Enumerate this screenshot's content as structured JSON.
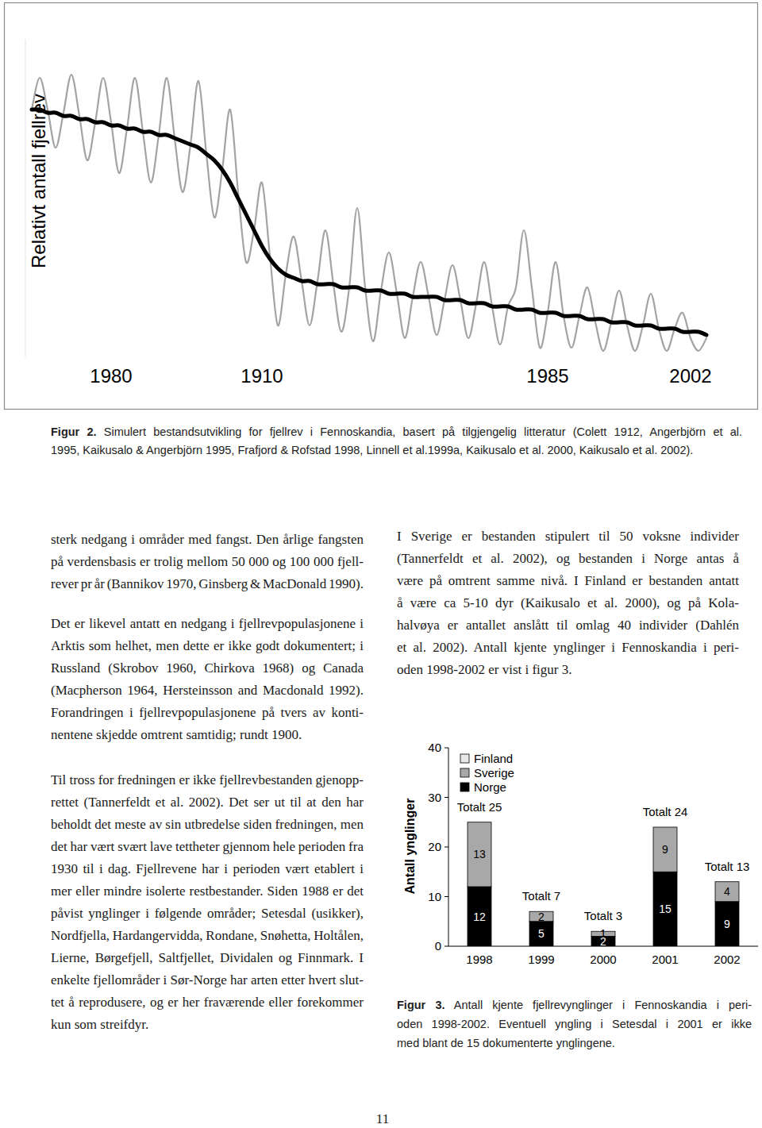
{
  "chart_data": [
    {
      "type": "line",
      "ylabel": "Relativt antall fjellrev",
      "categories": [
        null,
        null,
        null,
        null,
        null,
        null,
        null,
        null,
        null,
        null,
        "1980",
        null,
        null,
        null,
        null,
        null,
        null,
        null,
        null,
        null,
        null,
        null,
        null,
        null,
        null,
        null,
        null,
        null,
        null,
        "1910",
        null,
        null,
        null,
        null,
        null,
        null,
        null,
        null,
        null,
        null,
        null,
        null,
        null,
        null,
        null,
        null,
        null,
        null,
        null,
        null,
        null,
        null,
        null,
        null,
        null,
        null,
        null,
        null,
        null,
        null,
        null,
        null,
        null,
        null,
        null,
        "1985",
        null,
        null,
        null,
        null,
        null,
        null,
        null,
        null,
        null,
        null,
        null,
        null,
        null,
        null,
        null,
        null,
        null,
        "2002",
        null,
        null
      ],
      "series": [
        {
          "color": "#a3a3a3",
          "line_style": "solid",
          "values": [
            78,
            88,
            78,
            66,
            77,
            89,
            76,
            62,
            74,
            88,
            74,
            58,
            72,
            88,
            71,
            55,
            70,
            88,
            69,
            52,
            67,
            87,
            64,
            44,
            59,
            78,
            52,
            30,
            40,
            55,
            32,
            10,
            26,
            38,
            24,
            10,
            24,
            40,
            23,
            8,
            22,
            47,
            22,
            5,
            21,
            33,
            20,
            6,
            19,
            30,
            19,
            7,
            18,
            29,
            18,
            6,
            17,
            30,
            16,
            4,
            16,
            22,
            40,
            22,
            3,
            14,
            30,
            13,
            3,
            13,
            22,
            11,
            2,
            11,
            21,
            10,
            2,
            10,
            20,
            9,
            2,
            9,
            14,
            6,
            2,
            6
          ]
        },
        {
          "color": "#000000",
          "line_style": "bold",
          "values": [
            78,
            78,
            77,
            77,
            76,
            76,
            75,
            75,
            74,
            74,
            73,
            73,
            72,
            72,
            71,
            71,
            70,
            70,
            69,
            68,
            67,
            66,
            64,
            62,
            59,
            55,
            50,
            45,
            40,
            35,
            31,
            28,
            26,
            25,
            24,
            24,
            23,
            23,
            23,
            22,
            22,
            22,
            21,
            21,
            21,
            20,
            20,
            20,
            19,
            19,
            19,
            19,
            18,
            18,
            18,
            17,
            17,
            17,
            16,
            16,
            16,
            15,
            15,
            15,
            14,
            14,
            14,
            13,
            13,
            13,
            12,
            12,
            12,
            11,
            11,
            11,
            10,
            10,
            10,
            9,
            9,
            9,
            8,
            8,
            8,
            7
          ]
        }
      ],
      "ylim": [
        0,
        100
      ],
      "tick_labels": "x"
    },
    {
      "type": "bar",
      "stacked": true,
      "data_labels": true,
      "ylabel": "Antall ynglinger",
      "categories": [
        "1998",
        "1999",
        "2000",
        "2001",
        "2002"
      ],
      "series": [
        {
          "name": "Finland",
          "color": "#e8e8e8",
          "values": [
            0,
            0,
            0,
            0,
            0
          ]
        },
        {
          "name": "Sverige",
          "color": "#a8a8a8",
          "values": [
            13,
            2,
            1,
            9,
            4
          ]
        },
        {
          "name": "Norge",
          "color": "#000000",
          "values": [
            12,
            5,
            2,
            15,
            9
          ]
        }
      ],
      "ylim": [
        0,
        40
      ],
      "yticks": [
        0,
        10,
        20,
        30,
        40
      ],
      "legend": "top-left",
      "annotations": [
        {
          "category": "1998",
          "text": "Totalt 25"
        },
        {
          "category": "1999",
          "text": "Totalt 7"
        },
        {
          "category": "2000",
          "text": "Totalt 3"
        },
        {
          "category": "2001",
          "text": "Totalt 24"
        },
        {
          "category": "2002",
          "text": "Totalt 13"
        }
      ]
    }
  ],
  "document": {
    "figure_2": {
      "label": "Figur 2.",
      "caption_lines": [
        "Simulert bestandsutvikling for fjellrev i Fennoskandia, basert på tilgjengelig litteratur (Colett 1912, Angerbjörn et al.",
        "1995, Kaikusalo & Angerbjörn 1995, Frafjord & Rofstad 1998, Linnell et al.1999a, Kaikusalo et al. 2000, Kaikusalo et al. 2002)."
      ]
    },
    "left_column": [
      [
        "sterk nedgang i områder med fangst. Den årlige fangsten",
        "på verdensbasis er trolig mellom 50 000 og 100 000 fjell-",
        "rever pr år (Bannikov 1970, Ginsberg & MacDonald 1990)."
      ],
      [
        "Det er likevel antatt en nedgang i fjellrevpopulasjonene i",
        "Arktis som helhet, men dette er ikke godt dokumentert; i",
        "Russland (Skrobov 1960, Chirkova 1968) og Canada",
        "(Macpherson 1964, Hersteinsson and Macdonald 1992).",
        "Forandringen i fjellrevpopulasjonene på tvers av konti-",
        "nentene skjedde omtrent samtidig; rundt 1900."
      ],
      [
        "Til tross for fredningen er ikke fjellrevbestanden gjenopp-",
        "rettet (Tannerfeldt et al. 2002). Det ser ut til at den har",
        "beholdt det meste av sin utbredelse siden fredningen, men",
        "det har vært svært lave tettheter gjennom hele perioden fra",
        "1930 til i dag. Fjellrevene har i perioden vært etablert i",
        "mer eller mindre isolerte restbestander. Siden 1988 er det",
        "påvist ynglinger i følgende områder; Setesdal (usikker),",
        "Nordfjella, Hardangervidda, Rondane, Snøhetta, Holtålen,",
        "Lierne, Børgefjell, Saltfjellet, Dividalen og Finnmark. I",
        "enkelte fjellområder i Sør-Norge har arten etter hvert slut-",
        "tet å reprodusere, og er her fraværende eller forekommer",
        "kun som streifdyr."
      ]
    ],
    "right_column": [
      [
        "I Sverige er bestanden stipulert til 50 voksne individer",
        "(Tannerfeldt et al. 2002), og bestanden i Norge antas å",
        "være på omtrent samme nivå. I Finland er bestanden antatt",
        "å være ca 5-10 dyr (Kaikusalo et al. 2000), og på Kola-",
        "halvøya er antallet anslått til omlag 40 individer (Dahlén",
        "et al. 2002). Antall kjente ynglinger i Fennoskandia i peri-",
        "oden 1998-2002 er vist i figur 3."
      ]
    ],
    "figure_3": {
      "label": "Figur 3.",
      "caption_lines": [
        "Antall kjente fjellrevynglinger i Fennoskandia i peri-",
        "oden 1998-2002. Eventuell yngling i Setesdal i 2001 er ikke",
        "med blant de 15 dokumenterte ynglingene."
      ]
    },
    "page_number": "11"
  }
}
